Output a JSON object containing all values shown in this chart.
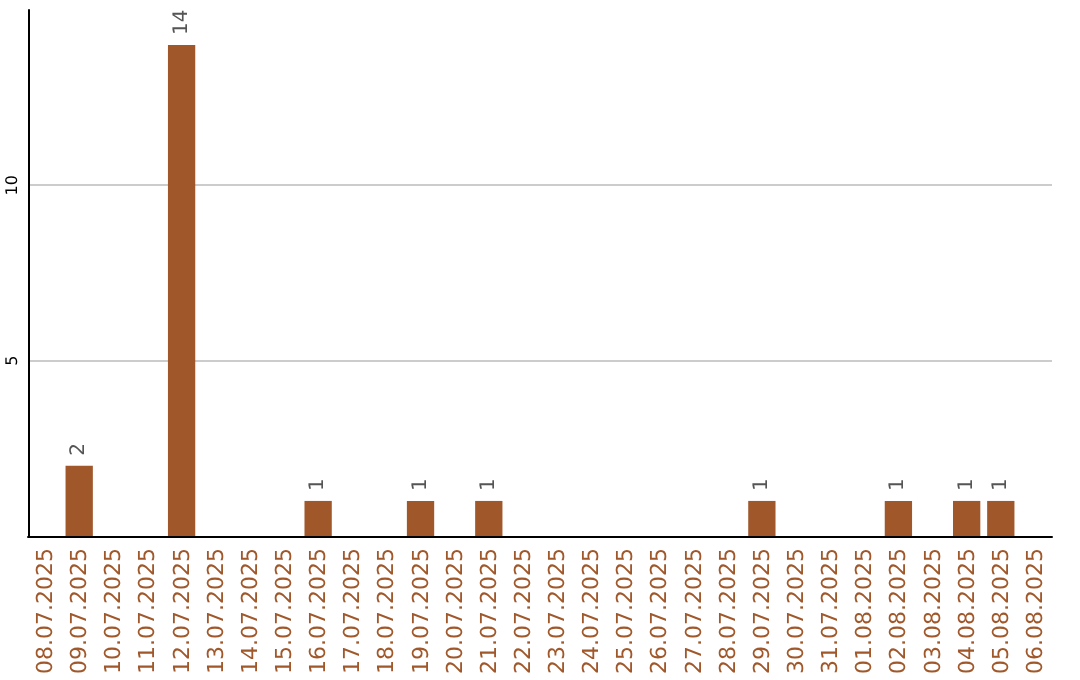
{
  "chart_data": {
    "type": "bar",
    "categories": [
      "08.07.2025",
      "09.07.2025",
      "10.07.2025",
      "11.07.2025",
      "12.07.2025",
      "13.07.2025",
      "14.07.2025",
      "15.07.2025",
      "16.07.2025",
      "17.07.2025",
      "18.07.2025",
      "19.07.2025",
      "20.07.2025",
      "21.07.2025",
      "22.07.2025",
      "23.07.2025",
      "24.07.2025",
      "25.07.2025",
      "26.07.2025",
      "27.07.2025",
      "28.07.2025",
      "29.07.2025",
      "30.07.2025",
      "31.07.2025",
      "01.08.2025",
      "02.08.2025",
      "03.08.2025",
      "04.08.2025",
      "05.08.2025",
      "06.08.2025"
    ],
    "values": [
      0,
      2,
      0,
      0,
      14,
      0,
      0,
      0,
      1,
      0,
      0,
      1,
      0,
      1,
      0,
      0,
      0,
      0,
      0,
      0,
      0,
      1,
      0,
      0,
      0,
      1,
      0,
      1,
      1,
      0
    ],
    "value_labels": [
      null,
      "2",
      null,
      null,
      "14",
      null,
      null,
      null,
      "1",
      null,
      null,
      "1",
      null,
      "1",
      null,
      null,
      null,
      null,
      null,
      null,
      null,
      "1",
      null,
      null,
      null,
      "1",
      null,
      "1",
      "1",
      null
    ],
    "color": "#a0582b",
    "ylim": [
      0,
      15
    ],
    "yticks": [
      5,
      10
    ],
    "grid": "y"
  }
}
